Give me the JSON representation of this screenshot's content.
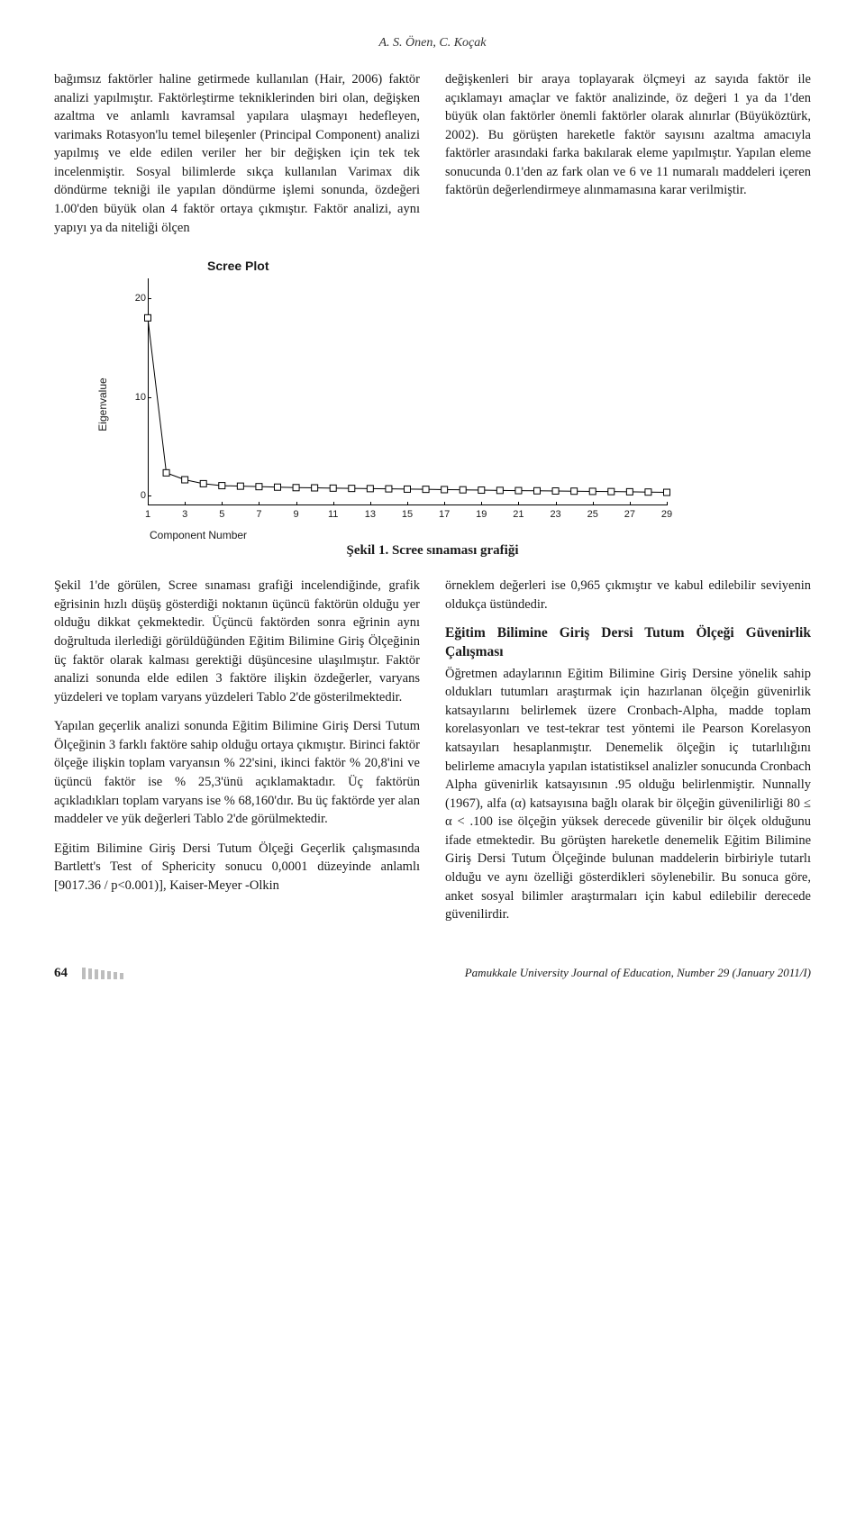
{
  "header": {
    "authors": "A. S. Önen, C. Koçak"
  },
  "intro": {
    "left": "bağımsız faktörler haline getirmede kullanılan (Hair, 2006) faktör analizi yapılmıştır. Faktörleştirme tekniklerinden biri olan, değişken azaltma ve anlamlı kavramsal yapılara ulaşmayı hedefleyen, varimaks Rotasyon'lu temel bileşenler (Principal Component) analizi yapılmış ve elde edilen veriler her bir değişken için tek tek incelenmiştir. Sosyal bilimlerde sıkça kullanılan Varimax dik döndürme tekniği ile yapılan döndürme işlemi sonunda, özdeğeri 1.00'den büyük olan 4 faktör ortaya çıkmıştır. Faktör analizi, aynı yapıyı ya da niteliği ölçen",
    "right": "değişkenleri bir araya toplayarak ölçmeyi az sayıda faktör ile açıklamayı amaçlar ve faktör analizinde, öz değeri 1 ya da 1'den büyük olan faktörler önemli faktörler olarak alınırlar (Büyüköztürk, 2002). Bu görüşten hareketle faktör sayısını azaltma amacıyla faktörler arasındaki farka bakılarak eleme yapılmıştır. Yapılan eleme sonucunda 0.1'den az fark olan ve 6 ve 11 numaralı maddeleri içeren faktörün değerlendirmeye alınmamasına karar verilmiştir."
  },
  "chart": {
    "title": "Scree Plot",
    "ylabel": "Eigenvalue",
    "xlabel": "Component Number",
    "yticks": [
      0,
      10,
      20
    ],
    "xticks": [
      1,
      3,
      5,
      7,
      9,
      11,
      13,
      15,
      17,
      19,
      21,
      23,
      25,
      27,
      29
    ],
    "xlim": [
      1,
      29
    ],
    "ylim": [
      -1,
      22
    ],
    "marker_fill": "#ffffff",
    "marker_stroke": "#000000",
    "line_color": "#000000",
    "data": [
      {
        "x": 1,
        "y": 18.0
      },
      {
        "x": 2,
        "y": 2.3
      },
      {
        "x": 3,
        "y": 1.6
      },
      {
        "x": 4,
        "y": 1.2
      },
      {
        "x": 5,
        "y": 1.0
      },
      {
        "x": 6,
        "y": 0.95
      },
      {
        "x": 7,
        "y": 0.9
      },
      {
        "x": 8,
        "y": 0.85
      },
      {
        "x": 9,
        "y": 0.8
      },
      {
        "x": 10,
        "y": 0.78
      },
      {
        "x": 11,
        "y": 0.75
      },
      {
        "x": 12,
        "y": 0.72
      },
      {
        "x": 13,
        "y": 0.7
      },
      {
        "x": 14,
        "y": 0.68
      },
      {
        "x": 15,
        "y": 0.65
      },
      {
        "x": 16,
        "y": 0.63
      },
      {
        "x": 17,
        "y": 0.6
      },
      {
        "x": 18,
        "y": 0.58
      },
      {
        "x": 19,
        "y": 0.55
      },
      {
        "x": 20,
        "y": 0.52
      },
      {
        "x": 21,
        "y": 0.5
      },
      {
        "x": 22,
        "y": 0.48
      },
      {
        "x": 23,
        "y": 0.46
      },
      {
        "x": 24,
        "y": 0.44
      },
      {
        "x": 25,
        "y": 0.42
      },
      {
        "x": 26,
        "y": 0.4
      },
      {
        "x": 27,
        "y": 0.38
      },
      {
        "x": 28,
        "y": 0.35
      },
      {
        "x": 29,
        "y": 0.32
      }
    ]
  },
  "figcaption": "Şekil 1. Scree sınaması grafiği",
  "body": {
    "left_p1": "Şekil 1'de görülen, Scree sınaması grafiği incelendiğinde, grafik eğrisinin hızlı düşüş gösterdiği noktanın üçüncü faktörün olduğu yer olduğu dikkat çekmektedir. Üçüncü faktörden sonra eğrinin aynı doğrultuda ilerlediği görüldüğünden Eğitim Bilimine Giriş Ölçeğinin üç faktör olarak kalması gerektiği düşüncesine ulaşılmıştır. Faktör analizi sonunda elde edilen 3 faktöre ilişkin özdeğerler, varyans yüzdeleri ve toplam varyans yüzdeleri Tablo 2'de gösterilmektedir.",
    "left_p2": "Yapılan geçerlik analizi sonunda Eğitim Bilimine Giriş Dersi Tutum Ölçeğinin 3 farklı faktöre sahip olduğu ortaya çıkmıştır. Birinci faktör ölçeğe ilişkin toplam varyansın % 22'sini, ikinci faktör % 20,8'ini ve üçüncü faktör ise % 25,3'ünü açıklamaktadır. Üç faktörün açıkladıkları toplam varyans ise % 68,160'dır. Bu üç faktörde yer alan maddeler ve yük değerleri Tablo 2'de görülmektedir.",
    "left_p3": "Eğitim Bilimine Giriş Dersi Tutum Ölçeği Geçerlik çalışmasında Bartlett's Test of Sphericity sonucu 0,0001 düzeyinde anlamlı [9017.36 / p<0.001)], Kaiser-Meyer -Olkin",
    "right_p1": "örneklem değerleri ise 0,965 çıkmıştır ve kabul edilebilir seviyenin oldukça üstündedir.",
    "right_heading": "Eğitim Bilimine Giriş Dersi Tutum Ölçeği Güvenirlik Çalışması",
    "right_p2": "Öğretmen adaylarının Eğitim Bilimine Giriş Dersine yönelik sahip oldukları tutumları araştırmak için hazırlanan ölçeğin güvenirlik katsayılarını belirlemek üzere Cronbach-Alpha, madde toplam korelasyonları ve test-tekrar test yöntemi ile Pearson Korelasyon katsayıları hesaplanmıştır. Denemelik ölçeğin iç tutarlılığını belirleme amacıyla yapılan istatistiksel analizler sonucunda Cronbach Alpha güvenirlik katsayısının .95 olduğu belirlenmiştir. Nunnally (1967), alfa (α) katsayısına bağlı olarak bir ölçeğin güvenilirliği 80 ≤ α < .100 ise ölçeğin yüksek derecede güvenilir bir ölçek olduğunu ifade etmektedir. Bu görüşten hareketle denemelik Eğitim Bilimine Giriş Dersi Tutum Ölçeğinde bulunan maddelerin birbiriyle tutarlı olduğu ve aynı özelliği gösterdikleri söylenebilir. Bu sonuca göre, anket sosyal bilimler araştırmaları için kabul edilebilir derecede güvenilirdir."
  },
  "footer": {
    "page": "64",
    "journal": "Pamukkale University Journal of Education, Number 29 (January 2011/I)"
  }
}
